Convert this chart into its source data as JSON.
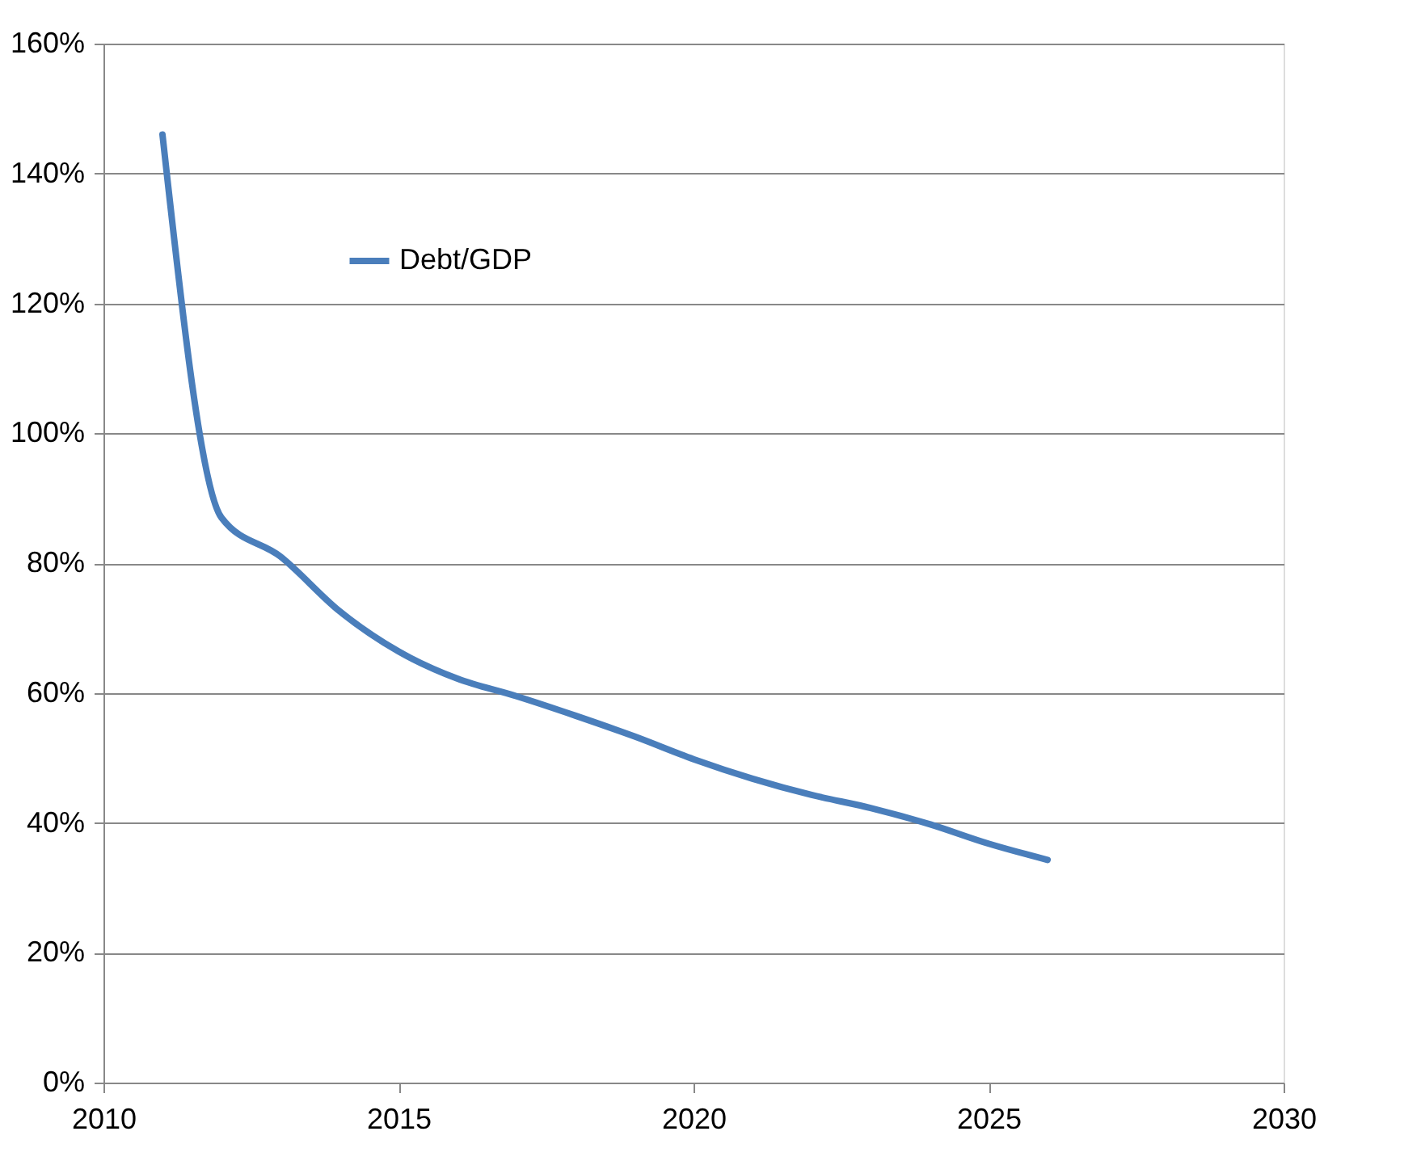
{
  "chart_data": {
    "type": "line",
    "x": [
      2011,
      2012,
      2013,
      2014,
      2015,
      2016,
      2017,
      2018,
      2019,
      2020,
      2021,
      2022,
      2023,
      2024,
      2025,
      2026
    ],
    "series": [
      {
        "name": "Debt/GDP",
        "color": "#4a7ebb",
        "values": [
          146,
          87,
          81,
          72.6,
          66.4,
          62.2,
          59.5,
          56.5,
          53.3,
          49.8,
          46.8,
          44.3,
          42.3,
          39.8,
          36.8,
          34.3
        ]
      }
    ],
    "xlim": [
      2010,
      2030
    ],
    "xticks": [
      2010,
      2015,
      2020,
      2025,
      2030
    ],
    "ylim": [
      0,
      160
    ],
    "yticks": [
      {
        "value": 0,
        "label": "0%"
      },
      {
        "value": 20,
        "label": "20%"
      },
      {
        "value": 40,
        "label": "40%"
      },
      {
        "value": 60,
        "label": "60%"
      },
      {
        "value": 80,
        "label": "80%"
      },
      {
        "value": 100,
        "label": "100%"
      },
      {
        "value": 120,
        "label": "120%"
      },
      {
        "value": 140,
        "label": "140%"
      },
      {
        "value": 160,
        "label": "160%"
      }
    ],
    "grid": "y",
    "legend": "top left",
    "marker": "none",
    "line_style": "solid"
  }
}
